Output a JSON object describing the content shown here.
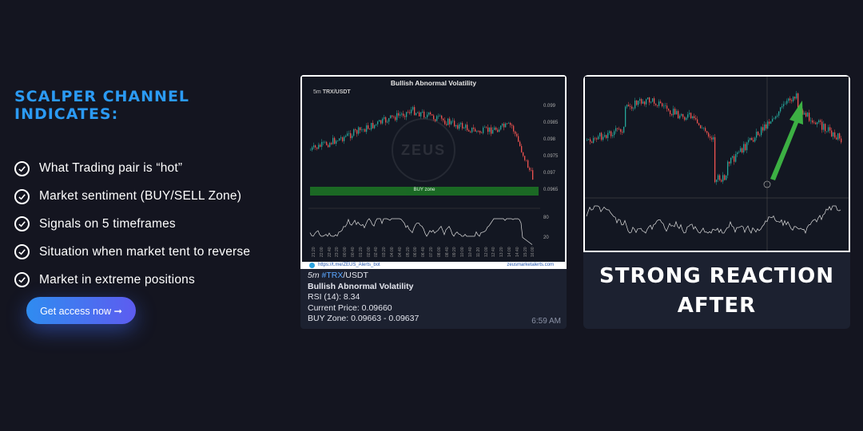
{
  "headline": "SCALPER CHANNEL INDICATES:",
  "features": [
    "What Trading pair is “hot”",
    "Market sentiment (BUY/SELL Zone)",
    "Signals on 5 timeframes",
    "Situation when market tent to reverse",
    "Market in extreme positions"
  ],
  "cta_label": "Get access now ➞",
  "alert": {
    "chart_title": "Bullish Abnormal Volatility",
    "chart_pair_tf": "5m",
    "chart_pair": "TRX/USDT",
    "y_labels": [
      "0.099",
      "0.0985",
      "0.098",
      "0.0975",
      "0.097",
      "0.0965"
    ],
    "rsi_labels": [
      "80",
      "20"
    ],
    "buy_zone_label": "BUY zone",
    "logo_text": "ZEUS",
    "x_labels": [
      "21:20",
      "22:00",
      "22:40",
      "23:20",
      "00:00",
      "00:40",
      "01:20",
      "02:00",
      "02:40",
      "03:20",
      "04:00",
      "04:40",
      "05:20",
      "06:00",
      "06:40",
      "07:20",
      "08:00",
      "08:40",
      "09:20",
      "10:00",
      "10:40",
      "11:20",
      "12:00",
      "12:40",
      "13:20",
      "14:00",
      "14:40",
      "15:20",
      "16:00"
    ],
    "footer_url": "https://t.me/ZEUS_Alerts_bot",
    "footer_site": "zeusmarketalerts.com",
    "message": {
      "tf": "5m",
      "tag": "#TRX",
      "pair_suffix": "/USDT",
      "title": "Bullish Abnormal Volatility",
      "rsi": "RSI (14): 8.34",
      "price": "Current Price: 0.09660",
      "zone": "BUY Zone: 0.09663 - 0.09637"
    },
    "time": "6:59 AM"
  },
  "after": {
    "line1": "STRONG REACTION",
    "line2": "AFTER"
  },
  "colors": {
    "accent": "#2b9af3",
    "buy_zone": "#1b6e25",
    "arrow": "#3cb043",
    "candle_up": "#26a69a",
    "candle_down": "#ef5350"
  }
}
